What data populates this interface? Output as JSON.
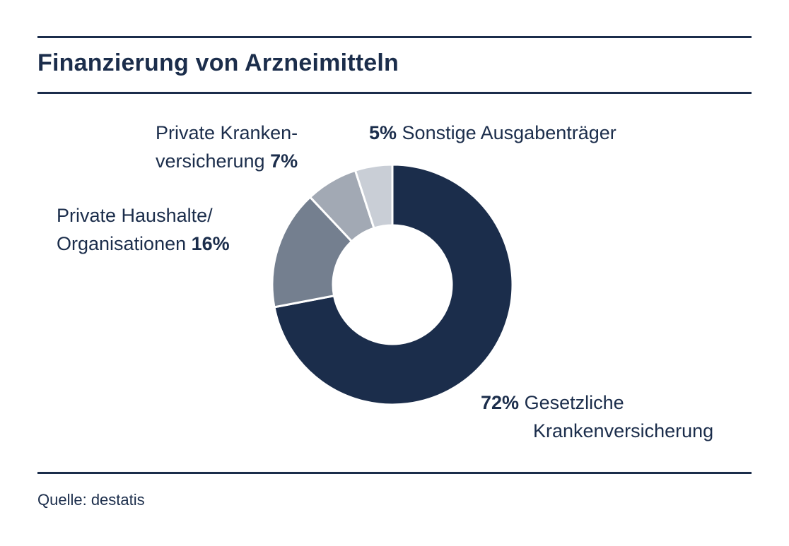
{
  "title": "Finanzierung von Arzneimitteln",
  "source": "Quelle: destatis",
  "chart_data": {
    "type": "pie",
    "variant": "donut",
    "title": "Finanzierung von Arzneimitteln",
    "unit": "%",
    "slices": [
      {
        "name": "Gesetzliche Krankenversicherung",
        "value": 72,
        "value_label": "72%",
        "label_lines": [
          "Gesetzliche",
          "Krankenversicherung"
        ],
        "color": "#1b2d4b"
      },
      {
        "name": "Private Haushalte/Organisationen",
        "value": 16,
        "value_label": "16%",
        "label_lines": [
          "Private Haushalte/",
          "Organisationen"
        ],
        "color": "#747f8f"
      },
      {
        "name": "Private Krankenversicherung",
        "value": 7,
        "value_label": "7%",
        "label_lines": [
          "Private Kranken-",
          "versicherung"
        ],
        "color": "#a2a9b4"
      },
      {
        "name": "Sonstige Ausgabenträger",
        "value": 5,
        "value_label": "5%",
        "label_lines": [
          "Sonstige Ausgabenträger"
        ],
        "color": "#c9ced6"
      }
    ],
    "legend": "none"
  }
}
